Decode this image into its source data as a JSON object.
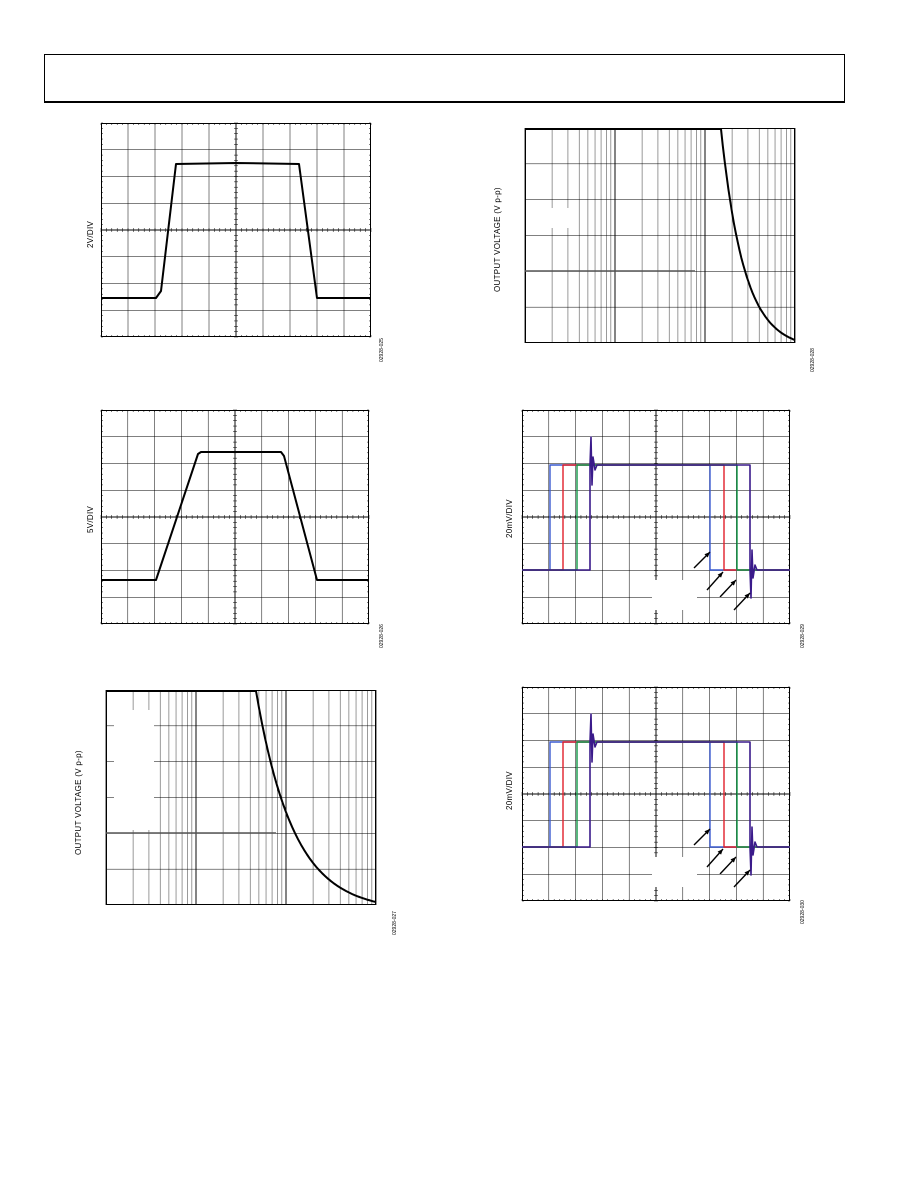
{
  "figures": [
    {
      "ylabel": "2V/DIV",
      "code": "02928-025",
      "type": "scope",
      "shape": "fast-pulse"
    },
    {
      "ylabel": "5V/DIV",
      "code": "02928-026",
      "type": "scope",
      "shape": "slow-pulse"
    },
    {
      "ylabel": "OUTPUT VOLTAGE (V p-p)",
      "code": "02928-027",
      "type": "log-rolloff"
    },
    {
      "ylabel": "OUTPUT VOLTAGE (V p-p)",
      "code": "02928-028",
      "type": "log-rolloff"
    },
    {
      "ylabel": "20mV/DIV",
      "code": "02928-029",
      "type": "settling"
    },
    {
      "ylabel": "20mV/DIV",
      "code": "02928-030",
      "type": "settling"
    }
  ],
  "colors": {
    "trace": "#000000",
    "grid": "#000000",
    "blue": "#3b5bd0",
    "red": "#e0202a",
    "green": "#129848",
    "purple": "#3a1a8a"
  }
}
